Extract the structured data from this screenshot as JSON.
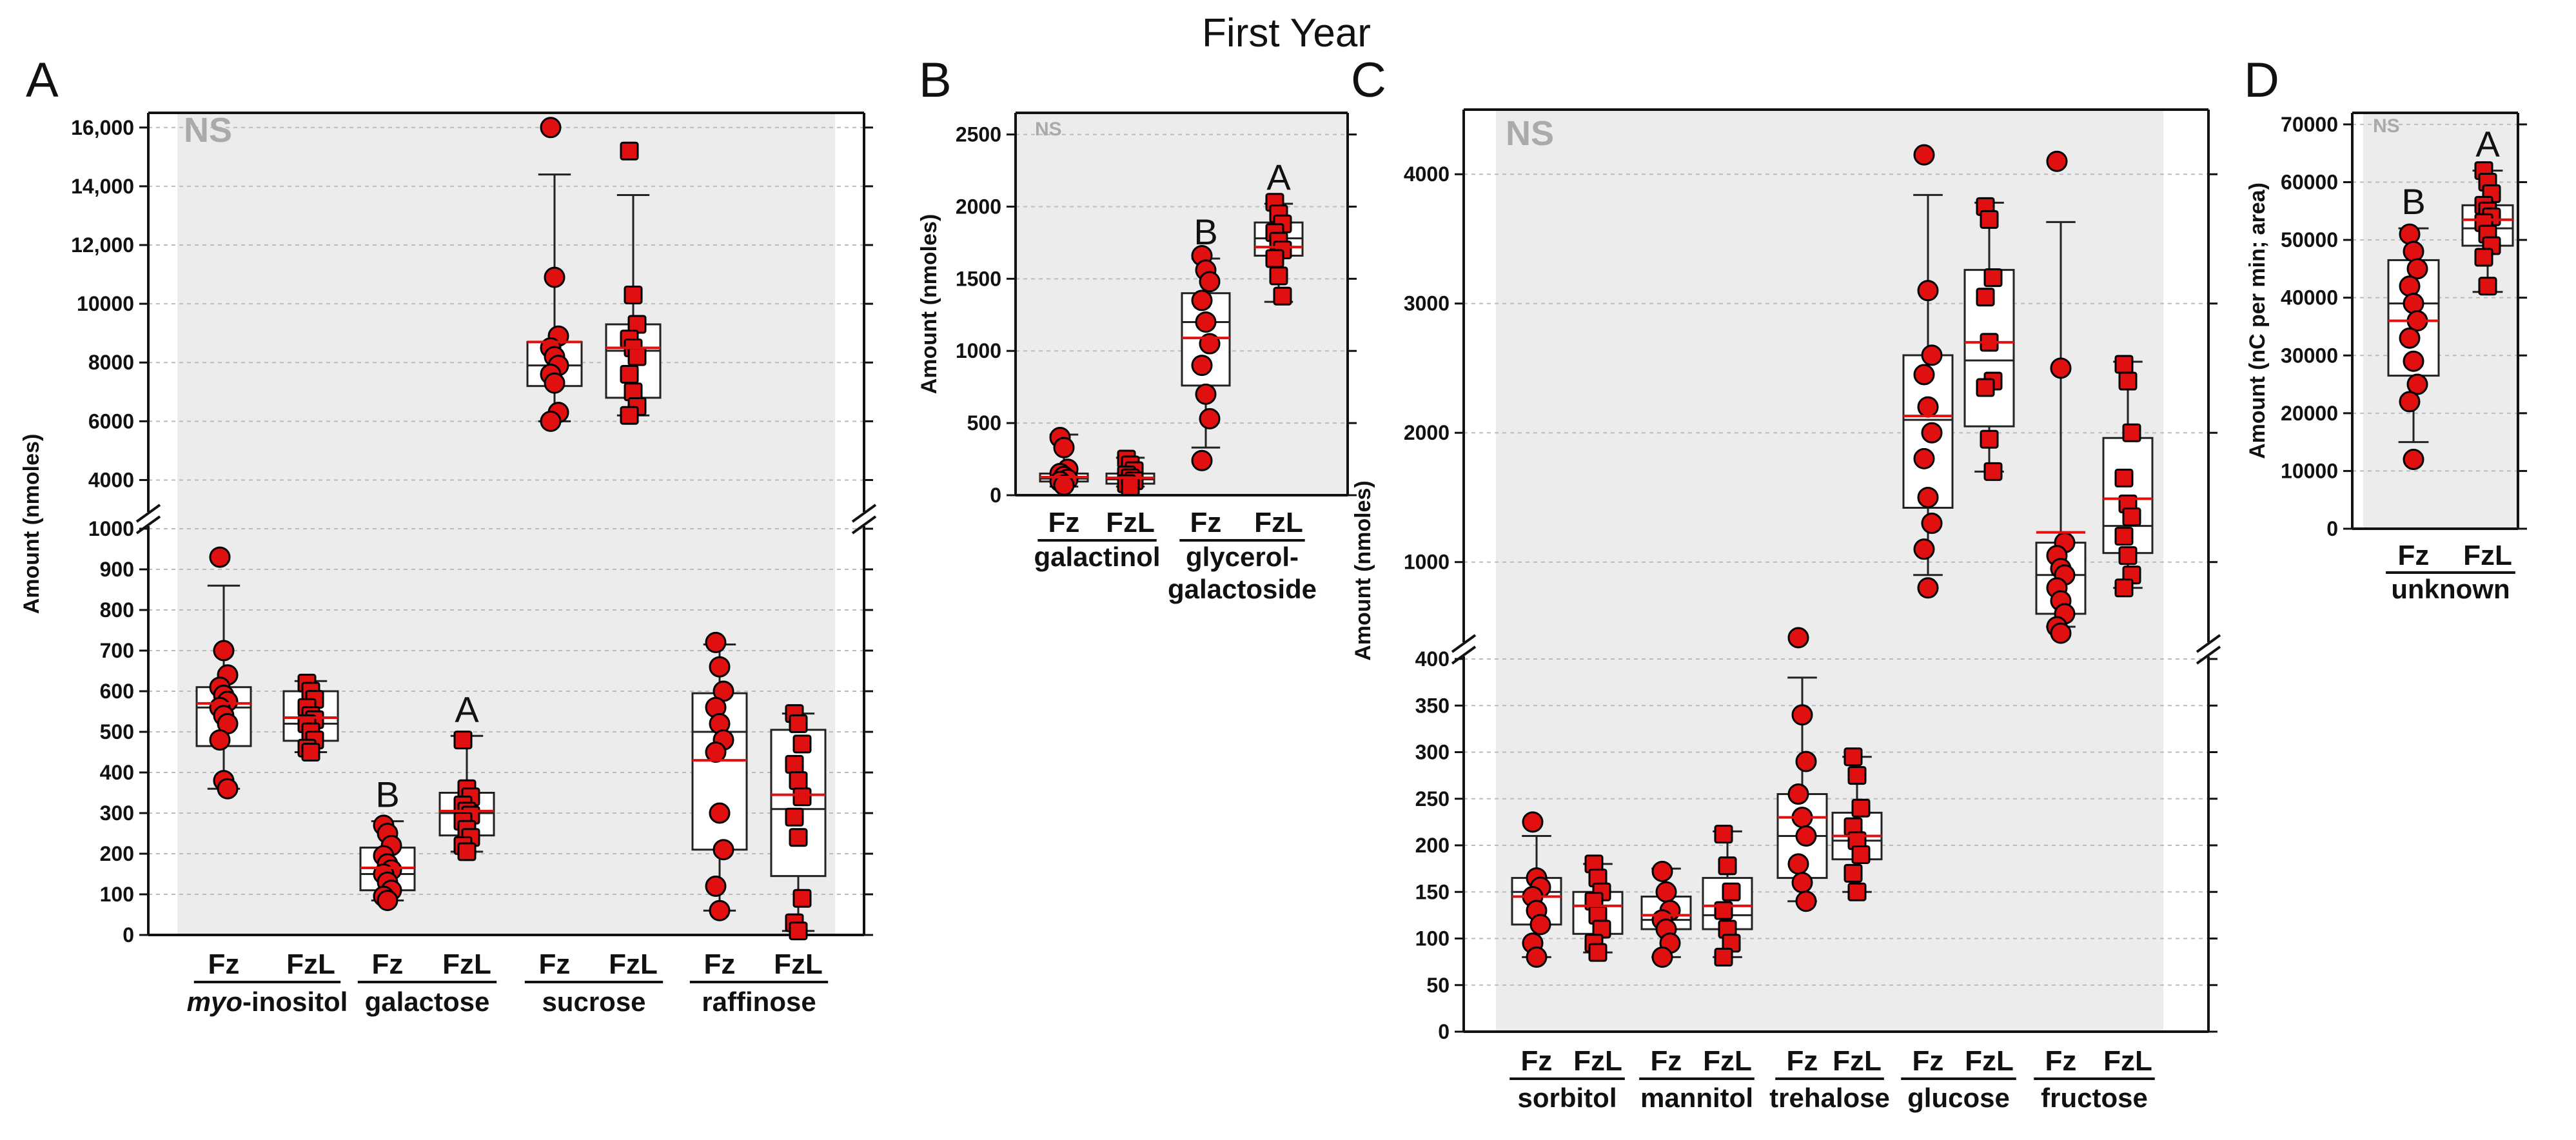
{
  "figure_title": "First Year",
  "colors": {
    "plot_bg": "#ececec",
    "marker": "#e01010",
    "mean_line": "#e01010",
    "box": "#222222",
    "ns": "#aaaaaa"
  },
  "chart_data": [
    {
      "panel": "A",
      "type": "box",
      "ylabel": "Amount (nmoles)",
      "significance_text": "NS",
      "broken_axis": true,
      "ylim_lower": [
        0,
        1000
      ],
      "yticks_lower": [
        0,
        100,
        200,
        300,
        400,
        500,
        600,
        700,
        800,
        900,
        1000
      ],
      "ylim_upper": [
        3000,
        16500
      ],
      "yticks_upper": [
        4000,
        6000,
        8000,
        10000,
        12000,
        14000,
        16000
      ],
      "ytick_labels_upper": [
        "4000",
        "6000",
        "8000",
        "10000",
        "12,000",
        "14,000",
        "16,000"
      ],
      "groups": [
        {
          "name_prefix": "myo",
          "name_rest": "-inositol",
          "name": "myo-inositol",
          "categories": [
            "Fz",
            "FzL"
          ]
        },
        {
          "name": "galactose",
          "categories": [
            "Fz",
            "FzL"
          ]
        },
        {
          "name": "sucrose",
          "categories": [
            "Fz",
            "FzL"
          ]
        },
        {
          "name": "raffinose",
          "categories": [
            "Fz",
            "FzL"
          ]
        }
      ],
      "series": [
        {
          "group": "myo-inositol",
          "category": "Fz",
          "min": 360,
          "q1": 465,
          "median": 560,
          "q3": 610,
          "max": 860,
          "mean": 570,
          "letter": "",
          "marker": "circle",
          "points": [
            930,
            700,
            640,
            610,
            590,
            575,
            560,
            540,
            520,
            480,
            380,
            360
          ]
        },
        {
          "group": "myo-inositol",
          "category": "FzL",
          "min": 450,
          "q1": 478,
          "median": 520,
          "q3": 600,
          "max": 625,
          "mean": 535,
          "letter": "",
          "marker": "square",
          "points": [
            620,
            600,
            580,
            560,
            540,
            530,
            520,
            500,
            480,
            460,
            450
          ]
        },
        {
          "group": "galactose",
          "category": "Fz",
          "min": 85,
          "q1": 110,
          "median": 150,
          "q3": 215,
          "max": 280,
          "mean": 165,
          "letter": "B",
          "marker": "circle",
          "points": [
            270,
            250,
            220,
            195,
            175,
            160,
            150,
            130,
            110,
            95,
            85
          ]
        },
        {
          "group": "galactose",
          "category": "FzL",
          "min": 205,
          "q1": 245,
          "median": 300,
          "q3": 350,
          "max": 490,
          "mean": 305,
          "letter": "A",
          "marker": "square",
          "points": [
            480,
            360,
            340,
            320,
            305,
            295,
            280,
            260,
            240,
            220,
            205
          ]
        },
        {
          "group": "sucrose",
          "category": "Fz",
          "min": 6000,
          "q1": 7200,
          "median": 7900,
          "q3": 8700,
          "max": 14400,
          "mean": 8700,
          "letter": "",
          "marker": "circle",
          "points": [
            16000,
            10900,
            8900,
            8500,
            8200,
            7900,
            7600,
            7300,
            6300,
            6000
          ]
        },
        {
          "group": "sucrose",
          "category": "FzL",
          "min": 6200,
          "q1": 6800,
          "median": 8400,
          "q3": 9300,
          "max": 13700,
          "mean": 8500,
          "letter": "",
          "marker": "square",
          "points": [
            15200,
            10300,
            9300,
            8800,
            8500,
            8200,
            7600,
            7000,
            6500,
            6200
          ]
        },
        {
          "group": "raffinose",
          "category": "Fz",
          "min": 60,
          "q1": 210,
          "median": 500,
          "q3": 595,
          "max": 715,
          "mean": 430,
          "letter": "",
          "marker": "circle",
          "points": [
            720,
            660,
            600,
            560,
            520,
            480,
            450,
            300,
            210,
            120,
            60
          ]
        },
        {
          "group": "raffinose",
          "category": "FzL",
          "min": 10,
          "q1": 145,
          "median": 310,
          "q3": 505,
          "max": 545,
          "mean": 345,
          "letter": "",
          "marker": "square",
          "points": [
            545,
            520,
            470,
            420,
            380,
            340,
            290,
            240,
            90,
            30,
            10
          ]
        }
      ]
    },
    {
      "panel": "B",
      "type": "box",
      "ylabel": "Amount (nmoles)",
      "significance_text": "NS",
      "broken_axis": false,
      "ylim": [
        0,
        2650
      ],
      "yticks": [
        0,
        500,
        1000,
        1500,
        2000,
        2500
      ],
      "groups": [
        {
          "name": "galactinol",
          "categories": [
            "Fz",
            "FzL"
          ]
        },
        {
          "name_line1": "glycerol-",
          "name_line2": "galactoside",
          "categories": [
            "Fz",
            "FzL"
          ]
        }
      ],
      "series": [
        {
          "group": "galactinol",
          "category": "Fz",
          "min": 60,
          "q1": 95,
          "median": 115,
          "q3": 150,
          "max": 420,
          "mean": 125,
          "letter": "",
          "marker": "circle",
          "points": [
            400,
            330,
            180,
            150,
            130,
            110,
            95,
            70
          ]
        },
        {
          "group": "galactinol",
          "category": "FzL",
          "min": 60,
          "q1": 80,
          "median": 110,
          "q3": 150,
          "max": 260,
          "mean": 120,
          "letter": "",
          "marker": "square",
          "points": [
            250,
            210,
            170,
            140,
            120,
            100,
            80,
            60
          ]
        },
        {
          "group": "glycerol-galactoside",
          "category": "Fz",
          "min": 330,
          "q1": 760,
          "median": 1200,
          "q3": 1400,
          "max": 1640,
          "mean": 1090,
          "letter": "B",
          "marker": "circle",
          "points": [
            1660,
            1560,
            1480,
            1350,
            1200,
            1050,
            900,
            700,
            530,
            240
          ]
        },
        {
          "group": "glycerol-galactoside",
          "category": "FzL",
          "min": 1340,
          "q1": 1660,
          "median": 1780,
          "q3": 1890,
          "max": 2020,
          "mean": 1720,
          "letter": "A",
          "marker": "square",
          "points": [
            2030,
            1950,
            1880,
            1820,
            1760,
            1700,
            1640,
            1520,
            1380
          ]
        }
      ]
    },
    {
      "panel": "C",
      "type": "box",
      "ylabel": "Amount (nmoles)",
      "significance_text": "NS",
      "broken_axis": true,
      "ylim_lower": [
        0,
        400
      ],
      "yticks_lower": [
        0,
        50,
        100,
        150,
        200,
        250,
        300,
        350
      ],
      "ylim_upper": [
        400,
        4500
      ],
      "yticks_upper": [
        400,
        1000,
        2000,
        3000,
        4000
      ],
      "groups": [
        {
          "name": "sorbitol",
          "categories": [
            "Fz",
            "FzL"
          ]
        },
        {
          "name": "mannitol",
          "categories": [
            "Fz",
            "FzL"
          ]
        },
        {
          "name": "trehalose",
          "categories": [
            "Fz",
            "FzL"
          ]
        },
        {
          "name": "glucose",
          "categories": [
            "Fz",
            "FzL"
          ]
        },
        {
          "name": "fructose",
          "categories": [
            "Fz",
            "FzL"
          ]
        }
      ],
      "series": [
        {
          "group": "sorbitol",
          "category": "Fz",
          "min": 80,
          "q1": 115,
          "median": 150,
          "q3": 165,
          "max": 210,
          "mean": 145,
          "letter": "",
          "marker": "circle",
          "points": [
            225,
            165,
            155,
            145,
            130,
            115,
            95,
            80
          ]
        },
        {
          "group": "sorbitol",
          "category": "FzL",
          "min": 85,
          "q1": 105,
          "median": 135,
          "q3": 150,
          "max": 180,
          "mean": 135,
          "letter": "",
          "marker": "square",
          "points": [
            180,
            165,
            150,
            140,
            125,
            110,
            95,
            85
          ]
        },
        {
          "group": "mannitol",
          "category": "Fz",
          "min": 80,
          "q1": 110,
          "median": 120,
          "q3": 145,
          "max": 175,
          "mean": 125,
          "letter": "",
          "marker": "circle",
          "points": [
            172,
            150,
            130,
            120,
            110,
            95,
            80
          ]
        },
        {
          "group": "mannitol",
          "category": "FzL",
          "min": 80,
          "q1": 110,
          "median": 125,
          "q3": 165,
          "max": 215,
          "mean": 135,
          "letter": "",
          "marker": "square",
          "points": [
            212,
            178,
            150,
            130,
            110,
            95,
            80
          ]
        },
        {
          "group": "trehalose",
          "category": "Fz",
          "min": 140,
          "q1": 165,
          "median": 210,
          "q3": 255,
          "max": 380,
          "mean": 230,
          "letter": "",
          "marker": "circle",
          "points": [
            415,
            340,
            290,
            255,
            230,
            210,
            180,
            160,
            140
          ]
        },
        {
          "group": "trehalose",
          "category": "FzL",
          "min": 150,
          "q1": 185,
          "median": 205,
          "q3": 235,
          "max": 295,
          "mean": 210,
          "letter": "",
          "marker": "square",
          "points": [
            295,
            275,
            240,
            220,
            205,
            190,
            170,
            150
          ]
        },
        {
          "group": "glucose",
          "category": "Fz",
          "min": 900,
          "q1": 1420,
          "median": 2100,
          "q3": 2600,
          "max": 3840,
          "mean": 2130,
          "letter": "",
          "marker": "circle",
          "points": [
            4150,
            3100,
            2600,
            2450,
            2200,
            2000,
            1800,
            1500,
            1300,
            1100,
            800
          ]
        },
        {
          "group": "glucose",
          "category": "FzL",
          "min": 1700,
          "q1": 2050,
          "median": 2560,
          "q3": 3260,
          "max": 3780,
          "mean": 2700,
          "letter": "",
          "marker": "square",
          "points": [
            3750,
            3650,
            3200,
            3050,
            2700,
            2400,
            2350,
            1950,
            1700
          ]
        },
        {
          "group": "fructose",
          "category": "Fz",
          "min": 500,
          "q1": 600,
          "median": 900,
          "q3": 1150,
          "max": 3630,
          "mean": 1230,
          "letter": "",
          "marker": "circle",
          "points": [
            4100,
            2500,
            1150,
            1050,
            950,
            900,
            800,
            700,
            600,
            500,
            450
          ]
        },
        {
          "group": "fructose",
          "category": "FzL",
          "min": 800,
          "q1": 1070,
          "median": 1280,
          "q3": 1960,
          "max": 2550,
          "mean": 1490,
          "letter": "",
          "marker": "square",
          "points": [
            2530,
            2400,
            2000,
            1650,
            1450,
            1350,
            1200,
            1050,
            900,
            800
          ]
        }
      ]
    },
    {
      "panel": "D",
      "type": "box",
      "ylabel": "Amount (nC per min; area)",
      "significance_text": "NS",
      "broken_axis": false,
      "ylim": [
        0,
        72000
      ],
      "yticks": [
        0,
        10000,
        20000,
        30000,
        40000,
        50000,
        60000,
        70000
      ],
      "groups": [
        {
          "name": "unknown",
          "categories": [
            "Fz",
            "FzL"
          ]
        }
      ],
      "series": [
        {
          "group": "unknown",
          "category": "Fz",
          "min": 15000,
          "q1": 26500,
          "median": 39000,
          "q3": 46500,
          "max": 52000,
          "mean": 36000,
          "letter": "B",
          "marker": "circle",
          "points": [
            51000,
            48000,
            45000,
            42000,
            39000,
            36000,
            33000,
            29000,
            25000,
            22000,
            12000
          ]
        },
        {
          "group": "unknown",
          "category": "FzL",
          "min": 41000,
          "q1": 49000,
          "median": 52000,
          "q3": 56000,
          "max": 62000,
          "mean": 53500,
          "letter": "A",
          "marker": "square",
          "points": [
            62000,
            60000,
            58000,
            56000,
            55000,
            54000,
            53000,
            51000,
            49000,
            47000,
            42000
          ]
        }
      ]
    }
  ]
}
